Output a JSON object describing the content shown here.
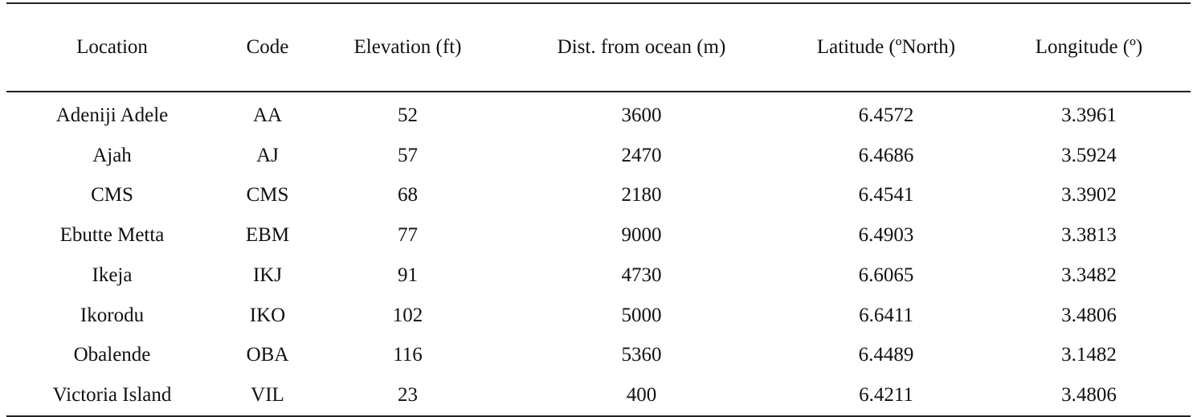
{
  "table": {
    "headers": [
      "Location",
      "Code",
      "Elevation (ft)",
      "Dist. from ocean (m)",
      "Latitude (ºNorth)",
      "Longitude (º)"
    ],
    "rows": [
      [
        "Adeniji Adele",
        "AA",
        "52",
        "3600",
        "6.4572",
        "3.3961"
      ],
      [
        "Ajah",
        "AJ",
        "57",
        "2470",
        "6.4686",
        "3.5924"
      ],
      [
        "CMS",
        "CMS",
        "68",
        "2180",
        "6.4541",
        "3.3902"
      ],
      [
        "Ebutte Metta",
        "EBM",
        "77",
        "9000",
        "6.4903",
        "3.3813"
      ],
      [
        "Ikeja",
        "IKJ",
        "91",
        "4730",
        "6.6065",
        "3.3482"
      ],
      [
        "Ikorodu",
        "IKO",
        "102",
        "5000",
        "6.6411",
        "3.4806"
      ],
      [
        "Obalende",
        "OBA",
        "116",
        "5360",
        "6.4489",
        "3.1482"
      ],
      [
        "Victoria Island",
        "VIL",
        "23",
        "400",
        "6.4211",
        "3.4806"
      ]
    ]
  }
}
